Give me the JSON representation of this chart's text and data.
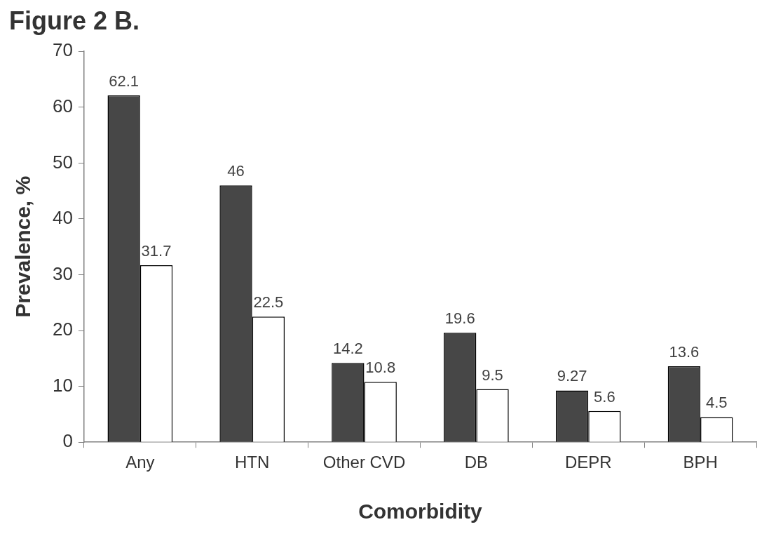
{
  "chart_data": {
    "type": "bar",
    "title": "Figure 2 B.",
    "xlabel": "Comorbidity",
    "ylabel": "Prevalence, %",
    "categories": [
      "Any",
      "HTN",
      "Other CVD",
      "DB",
      "DEPR",
      "BPH"
    ],
    "series": [
      {
        "color": "#474747",
        "values": [
          62.1,
          46,
          14.2,
          19.6,
          9.27,
          13.6
        ]
      },
      {
        "color": "#ffffff",
        "values": [
          31.7,
          22.5,
          10.8,
          9.5,
          5.6,
          4.5
        ]
      }
    ],
    "ylim": [
      0,
      70
    ],
    "yticks": [
      0,
      10,
      20,
      30,
      40,
      50,
      60,
      70
    ],
    "grid": false,
    "legend": false,
    "data_labels": true
  }
}
